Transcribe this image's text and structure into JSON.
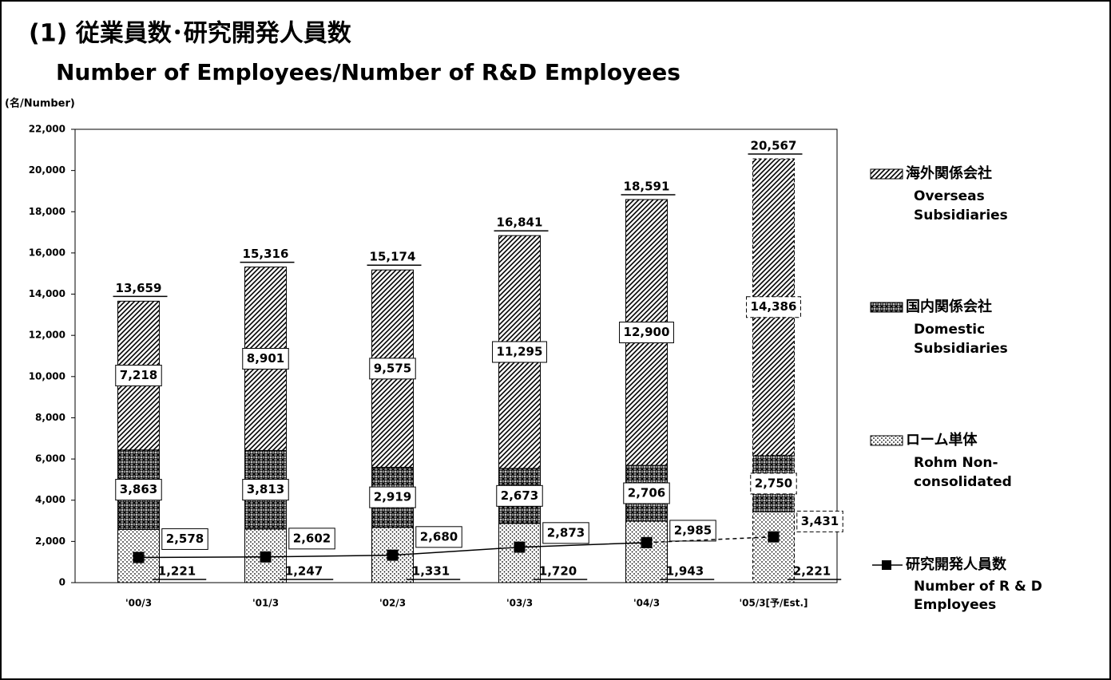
{
  "chart_data": {
    "type": "bar",
    "title": "(1) 従業員数･研究開発人員数",
    "subtitle": "Number of Employees/Number of R&D Employees",
    "y_label": "(名/Number)",
    "categories": [
      "'00/3",
      "'01/3",
      "'02/3",
      "'03/3",
      "'04/3",
      "'05/3[予/Est.]"
    ],
    "ylim": [
      0,
      22000
    ],
    "yticks": [
      0,
      {
        "value": 2000,
        "label": "2,000"
      },
      {
        "value": 4000,
        "label": "4,000"
      },
      {
        "value": 6000,
        "label": "6,000"
      },
      {
        "value": 8000,
        "label": "8,000"
      },
      {
        "value": 10000,
        "label": "10,000"
      },
      {
        "value": 12000,
        "label": "12,000"
      },
      {
        "value": 14000,
        "label": "14,000"
      },
      {
        "value": 16000,
        "label": "16,000"
      },
      {
        "value": 18000,
        "label": "18,000"
      },
      {
        "value": 20000,
        "label": "20,000"
      },
      {
        "value": 22000,
        "label": "22,000"
      }
    ],
    "series": [
      {
        "name": "ローム単体",
        "name_en": [
          "Rohm Non-",
          "consolidated"
        ],
        "pattern": "dots",
        "color": "#000000",
        "values": [
          2578,
          2602,
          2680,
          2873,
          2985,
          3431
        ],
        "value_labels": [
          "2,578",
          "2,602",
          "2,680",
          "2,873",
          "2,985",
          "3,431"
        ]
      },
      {
        "name": "国内関係会社",
        "name_en": [
          "Domestic",
          "Subsidiaries"
        ],
        "pattern": "cross",
        "color": "#000000",
        "values": [
          3863,
          3813,
          2919,
          2673,
          2706,
          2750
        ],
        "value_labels": [
          "3,863",
          "3,813",
          "2,919",
          "2,673",
          "2,706",
          "2,750"
        ]
      },
      {
        "name": "海外関係会社",
        "name_en": [
          "Overseas",
          "Subsidiaries"
        ],
        "pattern": "hatch",
        "color": "#000000",
        "values": [
          7218,
          8901,
          9575,
          11295,
          12900,
          14386
        ],
        "value_labels": [
          "7,218",
          "8,901",
          "9,575",
          "11,295",
          "12,900",
          "14,386"
        ]
      }
    ],
    "totals": [
      13659,
      15316,
      15174,
      16841,
      18591,
      20567
    ],
    "total_labels": [
      "13,659",
      "15,316",
      "15,174",
      "16,841",
      "18,591",
      "20,567"
    ],
    "line_series": {
      "name": "研究開発人員数",
      "name_en": [
        "Number of R & D",
        "Employees"
      ],
      "color": "#000000",
      "values": [
        1221,
        1247,
        1331,
        1720,
        1943,
        2221
      ],
      "value_labels": [
        "1,221",
        "1,247",
        "1,331",
        "1,720",
        "1,943",
        "2,221"
      ]
    }
  }
}
